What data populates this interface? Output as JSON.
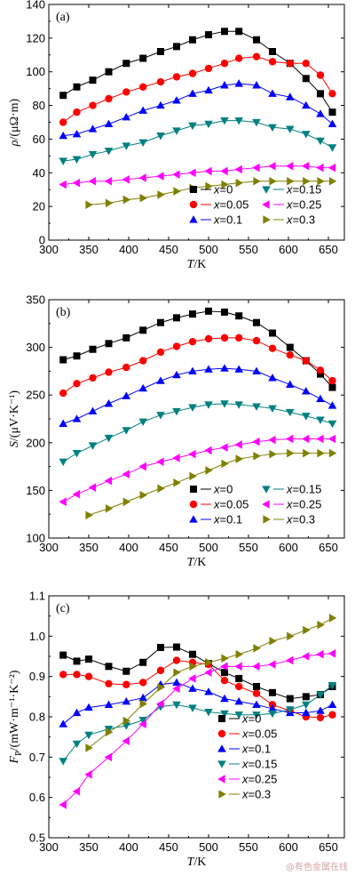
{
  "watermark": "@有色金属在线",
  "colors": {
    "x=0": "#000000",
    "x=0.05": "#ff0000",
    "x=0.1": "#0000ff",
    "x=0.15": "#008080",
    "x=0.25": "#ff00ff",
    "x=0.3": "#808000"
  },
  "chart_data": [
    {
      "type": "line",
      "panel_label": "(a)",
      "ylabel_var": "ρ",
      "ylabel_unit": "/(μΩ·m)",
      "xlabel_var": "T",
      "xlabel_unit": "/K",
      "xlim": [
        300,
        670
      ],
      "ylim": [
        0,
        140
      ],
      "xticks": [
        300,
        350,
        400,
        450,
        500,
        550,
        600,
        650
      ],
      "yticks": [
        0,
        20,
        40,
        60,
        80,
        100,
        120,
        140
      ],
      "legend": {
        "placement": "bottom-right",
        "columns": 2
      },
      "series": [
        {
          "name": "x=0",
          "marker": "square",
          "x": [
            318,
            335,
            355,
            375,
            397,
            418,
            440,
            460,
            480,
            500,
            520,
            538,
            560,
            580,
            602,
            622,
            640,
            655
          ],
          "y": [
            86,
            91,
            95,
            100,
            105,
            108,
            112,
            115,
            119,
            122,
            124,
            124,
            119,
            112,
            105,
            96,
            87,
            76
          ]
        },
        {
          "name": "x=0.05",
          "marker": "circle",
          "x": [
            318,
            335,
            355,
            375,
            397,
            418,
            440,
            460,
            480,
            500,
            520,
            538,
            560,
            580,
            602,
            622,
            640,
            655
          ],
          "y": [
            70,
            76,
            80,
            84,
            88,
            91,
            94,
            97,
            99,
            102,
            105,
            108,
            109,
            106,
            105,
            105,
            98,
            87
          ]
        },
        {
          "name": "x=0.1",
          "marker": "triangle-up",
          "x": [
            318,
            335,
            355,
            375,
            397,
            418,
            440,
            460,
            480,
            500,
            520,
            538,
            560,
            580,
            602,
            622,
            640,
            655
          ],
          "y": [
            62,
            63,
            66,
            69,
            73,
            77,
            80,
            83,
            87,
            89,
            92,
            93,
            92,
            87,
            85,
            80,
            75,
            69
          ]
        },
        {
          "name": "x=0.15",
          "marker": "triangle-down",
          "x": [
            318,
            335,
            355,
            375,
            397,
            418,
            440,
            460,
            480,
            500,
            520,
            538,
            560,
            580,
            602,
            622,
            640,
            655
          ],
          "y": [
            47,
            48,
            51,
            53,
            56,
            58,
            62,
            65,
            68,
            69,
            71,
            71,
            70,
            67,
            66,
            63,
            59,
            55
          ]
        },
        {
          "name": "x=0.25",
          "marker": "triangle-left",
          "x": [
            318,
            335,
            355,
            375,
            397,
            418,
            440,
            460,
            480,
            500,
            520,
            538,
            560,
            580,
            602,
            622,
            640,
            655
          ],
          "y": [
            33,
            34,
            35,
            35,
            36,
            37,
            38,
            39,
            40,
            41,
            41,
            42,
            43,
            44,
            44,
            44,
            43,
            43
          ]
        },
        {
          "name": "x=0.3",
          "marker": "triangle-right",
          "x": [
            350,
            375,
            397,
            418,
            440,
            460,
            480,
            500,
            520,
            538,
            560,
            580,
            602,
            622,
            640,
            655
          ],
          "y": [
            21,
            22,
            24,
            25,
            27,
            29,
            31,
            32,
            33,
            34,
            35,
            35,
            35,
            35,
            35,
            35
          ]
        }
      ]
    },
    {
      "type": "line",
      "panel_label": "(b)",
      "ylabel_var": "S",
      "ylabel_unit": "/(μV·K⁻¹)",
      "xlabel_var": "T",
      "xlabel_unit": "/K",
      "xlim": [
        300,
        670
      ],
      "ylim": [
        100,
        350
      ],
      "xticks": [
        300,
        350,
        400,
        450,
        500,
        550,
        600,
        650
      ],
      "yticks": [
        100,
        150,
        200,
        250,
        300,
        350
      ],
      "legend": {
        "placement": "bottom-right",
        "columns": 2
      },
      "series": [
        {
          "name": "x=0",
          "marker": "square",
          "x": [
            318,
            335,
            355,
            375,
            397,
            418,
            440,
            460,
            480,
            500,
            520,
            538,
            560,
            580,
            602,
            622,
            640,
            655
          ],
          "y": [
            287,
            291,
            298,
            304,
            310,
            318,
            326,
            331,
            335,
            338,
            337,
            333,
            326,
            315,
            300,
            286,
            272,
            258
          ]
        },
        {
          "name": "x=0.05",
          "marker": "circle",
          "x": [
            318,
            335,
            355,
            375,
            397,
            418,
            440,
            460,
            480,
            500,
            520,
            538,
            560,
            580,
            602,
            622,
            640,
            655
          ],
          "y": [
            252,
            262,
            268,
            274,
            279,
            286,
            295,
            301,
            306,
            309,
            310,
            310,
            307,
            299,
            292,
            286,
            276,
            265
          ]
        },
        {
          "name": "x=0.1",
          "marker": "triangle-up",
          "x": [
            318,
            335,
            355,
            375,
            397,
            418,
            440,
            460,
            480,
            500,
            520,
            538,
            560,
            580,
            602,
            622,
            640,
            655
          ],
          "y": [
            220,
            225,
            233,
            241,
            249,
            257,
            265,
            271,
            275,
            277,
            278,
            277,
            275,
            268,
            261,
            254,
            246,
            239
          ]
        },
        {
          "name": "x=0.15",
          "marker": "triangle-down",
          "x": [
            318,
            335,
            355,
            375,
            397,
            418,
            440,
            460,
            480,
            500,
            520,
            538,
            560,
            580,
            602,
            622,
            640,
            655
          ],
          "y": [
            180,
            189,
            197,
            205,
            213,
            222,
            229,
            233,
            237,
            240,
            241,
            240,
            238,
            236,
            232,
            228,
            224,
            220
          ]
        },
        {
          "name": "x=0.25",
          "marker": "triangle-left",
          "x": [
            318,
            335,
            355,
            375,
            397,
            418,
            440,
            460,
            480,
            500,
            520,
            538,
            560,
            580,
            602,
            622,
            640,
            655
          ],
          "y": [
            138,
            146,
            153,
            160,
            167,
            175,
            180,
            184,
            188,
            192,
            195,
            198,
            201,
            203,
            204,
            204,
            204,
            204
          ]
        },
        {
          "name": "x=0.3",
          "marker": "triangle-right",
          "x": [
            350,
            375,
            397,
            418,
            440,
            460,
            480,
            500,
            520,
            538,
            560,
            580,
            602,
            622,
            640,
            655
          ],
          "y": [
            124,
            131,
            138,
            145,
            152,
            158,
            165,
            171,
            178,
            183,
            186,
            188,
            189,
            189,
            189,
            189
          ]
        }
      ]
    },
    {
      "type": "line",
      "panel_label": "(c)",
      "ylabel_var": "F",
      "ylabel_sub": "P",
      "ylabel_unit": "/(mW·m⁻¹·K⁻²)",
      "xlabel_var": "T",
      "xlabel_unit": "/K",
      "xlim": [
        300,
        670
      ],
      "ylim": [
        0.5,
        1.1
      ],
      "xticks": [
        300,
        350,
        400,
        450,
        500,
        550,
        600,
        650
      ],
      "yticks": [
        0.5,
        0.6,
        0.7,
        0.8,
        0.9,
        1.0,
        1.1
      ],
      "legend": {
        "placement": "bottom-center",
        "columns": 1
      },
      "series": [
        {
          "name": "x=0",
          "marker": "square",
          "x": [
            318,
            335,
            350,
            375,
            397,
            418,
            440,
            460,
            480,
            500,
            520,
            538,
            560,
            580,
            602,
            622,
            640,
            655
          ],
          "y": [
            0.953,
            0.938,
            0.943,
            0.925,
            0.913,
            0.935,
            0.972,
            0.973,
            0.955,
            0.932,
            0.91,
            0.895,
            0.875,
            0.86,
            0.845,
            0.85,
            0.855,
            0.875
          ]
        },
        {
          "name": "x=0.05",
          "marker": "circle",
          "x": [
            318,
            335,
            350,
            375,
            397,
            418,
            440,
            460,
            480,
            500,
            520,
            538,
            560,
            580,
            602,
            622,
            640,
            655
          ],
          "y": [
            0.905,
            0.905,
            0.9,
            0.882,
            0.88,
            0.885,
            0.915,
            0.94,
            0.935,
            0.93,
            0.89,
            0.875,
            0.858,
            0.83,
            0.815,
            0.8,
            0.798,
            0.805
          ]
        },
        {
          "name": "x=0.1",
          "marker": "triangle-up",
          "x": [
            318,
            335,
            350,
            375,
            397,
            418,
            440,
            460,
            480,
            500,
            520,
            538,
            560,
            580,
            602,
            622,
            640,
            655
          ],
          "y": [
            0.782,
            0.81,
            0.823,
            0.83,
            0.838,
            0.847,
            0.88,
            0.885,
            0.87,
            0.862,
            0.845,
            0.838,
            0.83,
            0.82,
            0.81,
            0.81,
            0.815,
            0.83
          ]
        },
        {
          "name": "x=0.15",
          "marker": "triangle-down",
          "x": [
            318,
            335,
            350,
            375,
            397,
            418,
            440,
            460,
            480,
            500,
            520,
            538,
            560,
            580,
            602,
            622,
            640,
            655
          ],
          "y": [
            0.69,
            0.733,
            0.755,
            0.77,
            0.778,
            0.792,
            0.825,
            0.83,
            0.822,
            0.812,
            0.808,
            0.805,
            0.805,
            0.808,
            0.818,
            0.83,
            0.855,
            0.878
          ]
        },
        {
          "name": "x=0.25",
          "marker": "triangle-left",
          "x": [
            318,
            335,
            350,
            375,
            397,
            418,
            440,
            460,
            480,
            500,
            520,
            538,
            560,
            580,
            602,
            622,
            640,
            655
          ],
          "y": [
            0.582,
            0.615,
            0.657,
            0.7,
            0.74,
            0.782,
            0.832,
            0.87,
            0.895,
            0.91,
            0.925,
            0.925,
            0.925,
            0.93,
            0.94,
            0.95,
            0.955,
            0.957
          ]
        },
        {
          "name": "x=0.3",
          "marker": "triangle-right",
          "x": [
            350,
            375,
            397,
            418,
            440,
            460,
            480,
            500,
            520,
            538,
            560,
            580,
            602,
            622,
            640,
            655
          ],
          "y": [
            0.723,
            0.762,
            0.79,
            0.832,
            0.873,
            0.91,
            0.925,
            0.935,
            0.945,
            0.955,
            0.97,
            0.988,
            1.0,
            1.015,
            1.028,
            1.045
          ]
        }
      ]
    }
  ]
}
